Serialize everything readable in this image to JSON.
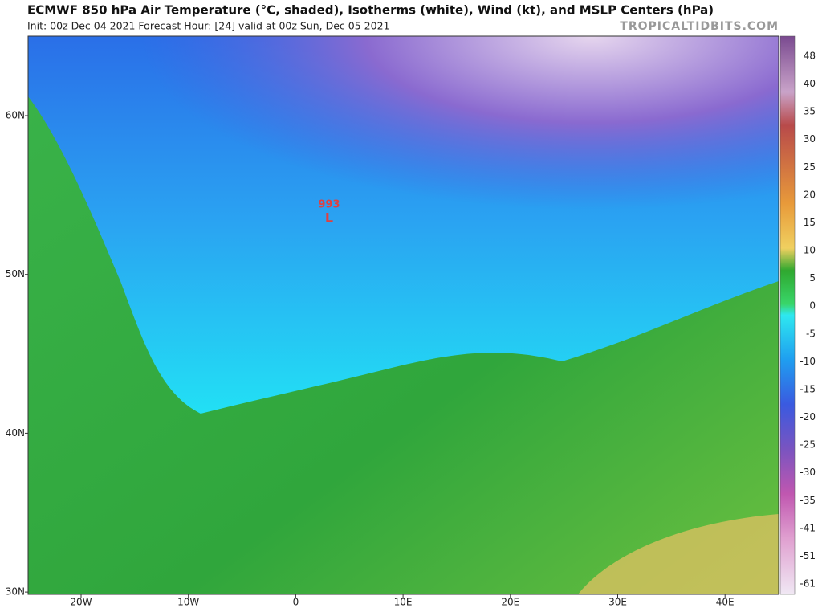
{
  "header": {
    "title": "ECMWF 850 hPa Air Temperature (°C, shaded), Isotherms (white), Wind (kt), and MSLP Centers (hPa)",
    "subtitle": "Init: 00z Dec 04 2021   Forecast Hour: [24]   valid at 00z Sun, Dec 05 2021",
    "brand": "TROPICALTIDBITS.COM"
  },
  "map": {
    "lat_labels": [
      "60N",
      "50N",
      "40N",
      "30N"
    ],
    "lon_labels": [
      "20W",
      "10W",
      "0",
      "10E",
      "20E",
      "30E",
      "40E"
    ],
    "pressure_center": {
      "value": "993",
      "symbol": "L"
    }
  },
  "colorbar": {
    "labels": [
      "48",
      "40",
      "35",
      "30",
      "25",
      "20",
      "15",
      "10",
      "5",
      "0",
      "-5",
      "-10",
      "-15",
      "-20",
      "-25",
      "-30",
      "-35",
      "-41",
      "-51",
      "-61"
    ]
  }
}
